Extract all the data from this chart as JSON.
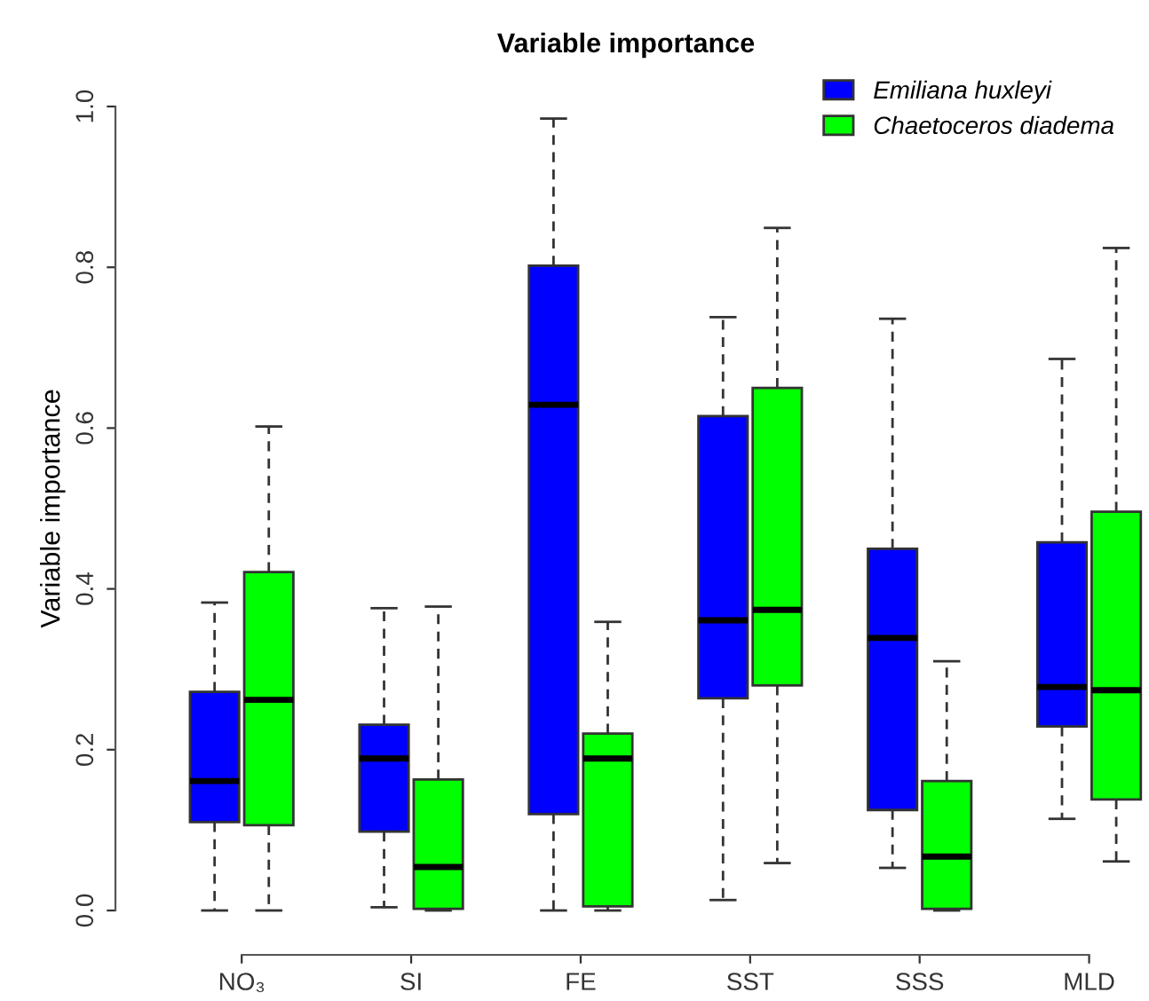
{
  "chart_data": {
    "type": "box",
    "title": "Variable importance",
    "ylabel": "Variable importance",
    "categories": [
      "NO₃",
      "SI",
      "FE",
      "SST",
      "SSS",
      "MLD"
    ],
    "ylim": [
      0,
      1
    ],
    "yticks": [
      {
        "value": 0,
        "label": "0.0"
      },
      0.2,
      0.4,
      0.6,
      0.8,
      {
        "value": 1,
        "label": "1.0"
      }
    ],
    "grid": false,
    "legend": "top right",
    "series": [
      {
        "name": "Emiliana huxleyi",
        "color": "#0000ff",
        "boxes": [
          {
            "low": 0.0,
            "q1": 0.11,
            "median": 0.161,
            "q3": 0.272,
            "high": 0.383
          },
          {
            "low": 0.004,
            "q1": 0.098,
            "median": 0.189,
            "q3": 0.231,
            "high": 0.376
          },
          {
            "low": 0.0,
            "q1": 0.12,
            "median": 0.629,
            "q3": 0.802,
            "high": 0.985
          },
          {
            "low": 0.013,
            "q1": 0.264,
            "median": 0.361,
            "q3": 0.615,
            "high": 0.738
          },
          {
            "low": 0.053,
            "q1": 0.125,
            "median": 0.339,
            "q3": 0.45,
            "high": 0.736
          },
          {
            "low": 0.114,
            "q1": 0.229,
            "median": 0.278,
            "q3": 0.458,
            "high": 0.686
          }
        ]
      },
      {
        "name": "Chaetoceros diadema",
        "color": "#00ff00",
        "boxes": [
          {
            "low": 0.0,
            "q1": 0.106,
            "median": 0.262,
            "q3": 0.421,
            "high": 0.602
          },
          {
            "low": 0.0,
            "q1": 0.002,
            "median": 0.054,
            "q3": 0.163,
            "high": 0.378
          },
          {
            "low": 0.0,
            "q1": 0.005,
            "median": 0.189,
            "q3": 0.22,
            "high": 0.359
          },
          {
            "low": 0.059,
            "q1": 0.28,
            "median": 0.374,
            "q3": 0.65,
            "high": 0.849
          },
          {
            "low": 0.0,
            "q1": 0.002,
            "median": 0.067,
            "q3": 0.161,
            "high": 0.31
          },
          {
            "low": 0.061,
            "q1": 0.138,
            "median": 0.274,
            "q3": 0.496,
            "high": 0.824
          }
        ]
      }
    ]
  }
}
